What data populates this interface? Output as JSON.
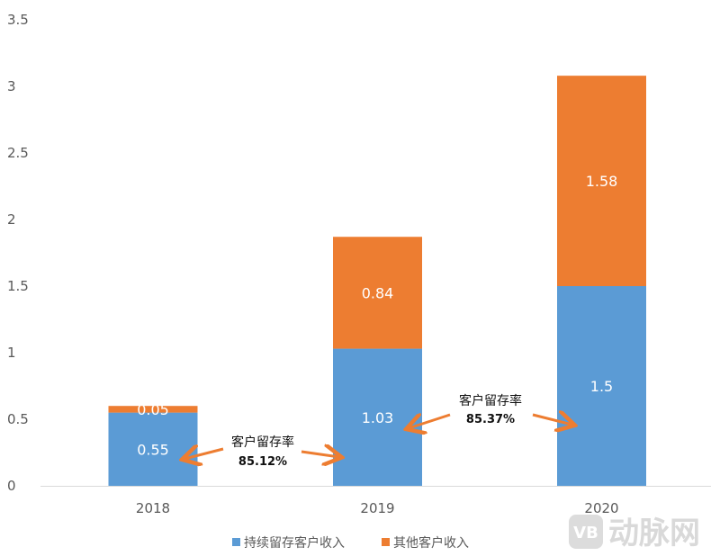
{
  "chart_data": {
    "type": "bar",
    "stacked": true,
    "title": "",
    "xlabel": "",
    "ylabel": "",
    "categories": [
      "2018",
      "2019",
      "2020"
    ],
    "series": [
      {
        "name": "持续留存客户收入",
        "values": [
          0.55,
          1.03,
          1.5
        ],
        "labels": [
          "0.55",
          "1.03",
          "1.5"
        ],
        "color": "#5B9BD5"
      },
      {
        "name": "其他客户收入",
        "values": [
          0.05,
          0.84,
          1.58
        ],
        "labels": [
          "0.05",
          "0.84",
          "1.58"
        ],
        "color": "#ED7D31"
      }
    ],
    "ylim": [
      0,
      3.5
    ],
    "yticks": [
      "0",
      "0.5",
      "1",
      "1.5",
      "2",
      "2.5",
      "3",
      "3.5"
    ],
    "grid": false,
    "legend": "bottom",
    "annotations": [
      {
        "title": "客户留存率",
        "value": "85.12%",
        "between": [
          "2018",
          "2019"
        ]
      },
      {
        "title": "客户留存率",
        "value": "85.37%",
        "between": [
          "2019",
          "2020"
        ]
      }
    ],
    "arrow_color": "#ED7D31"
  },
  "watermark": {
    "logo": "VB",
    "text": "动脉网"
  }
}
